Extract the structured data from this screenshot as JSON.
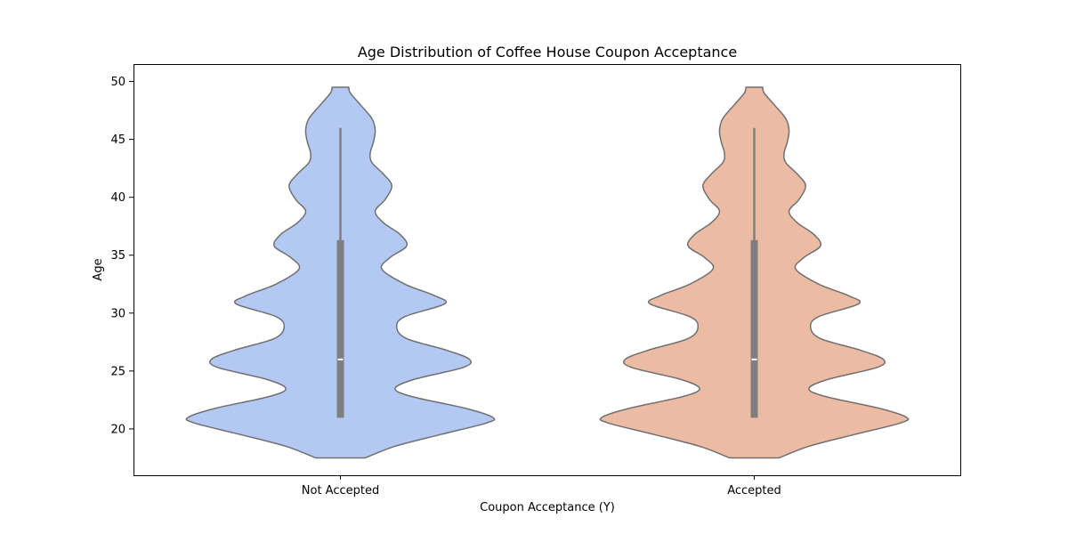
{
  "chart_data": {
    "type": "violin",
    "title": "Age Distribution of Coffee House Coupon Acceptance",
    "xlabel": "Coupon Acceptance (Y)",
    "ylabel": "Age",
    "categories": [
      "Not Accepted",
      "Accepted"
    ],
    "colors": [
      "#b3c9f3",
      "#ecbba4"
    ],
    "outline_color": "#707070",
    "box_color": "#7f7f7f",
    "ylim": [
      16,
      51.5
    ],
    "yticks": [
      20,
      25,
      30,
      35,
      40,
      45,
      50
    ],
    "series": [
      {
        "name": "Not Accepted",
        "min": 17.5,
        "max": 49.5,
        "whisker_low": 21,
        "whisker_high": 46,
        "q1": 21,
        "median": 26,
        "q3": 36.3,
        "density": [
          [
            17.5,
            0.15
          ],
          [
            18.5,
            0.33
          ],
          [
            19.5,
            0.6
          ],
          [
            20.5,
            0.88
          ],
          [
            21.0,
            0.92
          ],
          [
            21.8,
            0.75
          ],
          [
            22.8,
            0.43
          ],
          [
            23.5,
            0.33
          ],
          [
            24.3,
            0.45
          ],
          [
            25.3,
            0.74
          ],
          [
            26.0,
            0.78
          ],
          [
            26.8,
            0.64
          ],
          [
            27.8,
            0.4
          ],
          [
            28.8,
            0.34
          ],
          [
            29.7,
            0.39
          ],
          [
            30.8,
            0.63
          ],
          [
            31.5,
            0.57
          ],
          [
            32.5,
            0.39
          ],
          [
            33.8,
            0.25
          ],
          [
            34.8,
            0.3
          ],
          [
            35.8,
            0.4
          ],
          [
            36.8,
            0.36
          ],
          [
            37.8,
            0.26
          ],
          [
            38.8,
            0.21
          ],
          [
            39.8,
            0.27
          ],
          [
            41.0,
            0.31
          ],
          [
            42.0,
            0.26
          ],
          [
            43.0,
            0.19
          ],
          [
            43.8,
            0.18
          ],
          [
            44.8,
            0.2
          ],
          [
            45.8,
            0.21
          ],
          [
            46.8,
            0.19
          ],
          [
            48.0,
            0.12
          ],
          [
            49.0,
            0.06
          ],
          [
            49.5,
            0.05
          ]
        ]
      },
      {
        "name": "Accepted",
        "min": 17.5,
        "max": 49.5,
        "whisker_low": 21,
        "whisker_high": 46,
        "q1": 21,
        "median": 26,
        "q3": 36.3,
        "density": [
          [
            17.5,
            0.15
          ],
          [
            18.5,
            0.33
          ],
          [
            19.5,
            0.6
          ],
          [
            20.5,
            0.88
          ],
          [
            21.0,
            0.92
          ],
          [
            21.8,
            0.75
          ],
          [
            22.8,
            0.43
          ],
          [
            23.5,
            0.33
          ],
          [
            24.3,
            0.45
          ],
          [
            25.3,
            0.74
          ],
          [
            26.0,
            0.78
          ],
          [
            26.8,
            0.64
          ],
          [
            27.8,
            0.4
          ],
          [
            28.8,
            0.34
          ],
          [
            29.7,
            0.39
          ],
          [
            30.8,
            0.63
          ],
          [
            31.5,
            0.57
          ],
          [
            32.5,
            0.39
          ],
          [
            33.8,
            0.25
          ],
          [
            34.8,
            0.3
          ],
          [
            35.8,
            0.4
          ],
          [
            36.8,
            0.36
          ],
          [
            37.8,
            0.26
          ],
          [
            38.8,
            0.21
          ],
          [
            39.8,
            0.27
          ],
          [
            41.0,
            0.31
          ],
          [
            42.0,
            0.26
          ],
          [
            43.0,
            0.19
          ],
          [
            43.8,
            0.18
          ],
          [
            44.8,
            0.2
          ],
          [
            45.8,
            0.21
          ],
          [
            46.8,
            0.19
          ],
          [
            48.0,
            0.12
          ],
          [
            49.0,
            0.06
          ],
          [
            49.5,
            0.05
          ]
        ]
      }
    ]
  }
}
